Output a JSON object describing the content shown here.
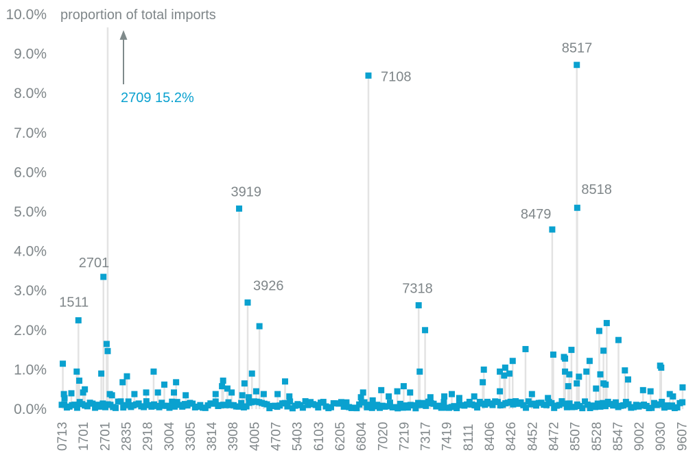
{
  "chart_data": {
    "type": "scatter",
    "style": "lollipop",
    "title": "proportion of total imports",
    "xlabel": "",
    "ylabel": "proportion of total imports",
    "ylim": [
      0,
      10
    ],
    "y_unit": "%",
    "y_ticks": [
      "0.0%",
      "1.0%",
      "2.0%",
      "3.0%",
      "4.0%",
      "5.0%",
      "6.0%",
      "7.0%",
      "8.0%",
      "9.0%",
      "10.0%"
    ],
    "x_tick_labels": [
      "0713",
      "1701",
      "2701",
      "2835",
      "2918",
      "3004",
      "3305",
      "3814",
      "3908",
      "4005",
      "4707",
      "5403",
      "6103",
      "6205",
      "6804",
      "7020",
      "7219",
      "7317",
      "7419",
      "8111",
      "8406",
      "8426",
      "8452",
      "8472",
      "8507",
      "8528",
      "8547",
      "9002",
      "9030",
      "9607"
    ],
    "grid": false,
    "legend": "none",
    "marker_color": "#0aa1cf",
    "stem_color": "#e3e3e3",
    "callout": {
      "text": "2709 15.2%",
      "code": "2709",
      "value": 15.2,
      "position": 2.15,
      "direction": "up-off-scale"
    },
    "labeled_points": [
      {
        "label": "1511",
        "position": 0.78,
        "value": 2.25
      },
      {
        "label": "2701",
        "position": 1.95,
        "value": 3.35
      },
      {
        "label": "3919",
        "position": 8.3,
        "value": 5.08
      },
      {
        "label": "3926",
        "position": 8.7,
        "value": 2.7
      },
      {
        "label": "7108",
        "position": 14.35,
        "value": 8.45
      },
      {
        "label": "7318",
        "position": 16.7,
        "value": 2.63
      },
      {
        "label": "8479",
        "position": 22.95,
        "value": 4.55
      },
      {
        "label": "8517",
        "position": 24.1,
        "value": 8.72
      },
      {
        "label": "8518",
        "position": 24.12,
        "value": 5.1
      }
    ],
    "points": [
      {
        "position": 0.05,
        "value": 1.15
      },
      {
        "position": 0.1,
        "value": 0.38
      },
      {
        "position": 0.13,
        "value": 0.28
      },
      {
        "position": 0.45,
        "value": 0.4
      },
      {
        "position": 0.7,
        "value": 0.95
      },
      {
        "position": 0.82,
        "value": 0.72
      },
      {
        "position": 1.0,
        "value": 0.42
      },
      {
        "position": 1.08,
        "value": 0.5
      },
      {
        "position": 1.85,
        "value": 0.9
      },
      {
        "position": 2.1,
        "value": 1.65
      },
      {
        "position": 2.15,
        "value": 1.47
      },
      {
        "position": 2.25,
        "value": 0.38
      },
      {
        "position": 2.35,
        "value": 0.35
      },
      {
        "position": 2.85,
        "value": 0.68
      },
      {
        "position": 3.05,
        "value": 0.83
      },
      {
        "position": 3.4,
        "value": 0.38
      },
      {
        "position": 3.95,
        "value": 0.42
      },
      {
        "position": 4.3,
        "value": 0.95
      },
      {
        "position": 4.5,
        "value": 0.42
      },
      {
        "position": 4.8,
        "value": 0.62
      },
      {
        "position": 5.25,
        "value": 0.42
      },
      {
        "position": 5.35,
        "value": 0.68
      },
      {
        "position": 5.8,
        "value": 0.35
      },
      {
        "position": 7.2,
        "value": 0.38
      },
      {
        "position": 7.55,
        "value": 0.72
      },
      {
        "position": 7.5,
        "value": 0.58
      },
      {
        "position": 7.75,
        "value": 0.52
      },
      {
        "position": 7.95,
        "value": 0.42
      },
      {
        "position": 8.45,
        "value": 0.35
      },
      {
        "position": 8.55,
        "value": 0.65
      },
      {
        "position": 8.9,
        "value": 0.9
      },
      {
        "position": 8.75,
        "value": 0.3
      },
      {
        "position": 9.25,
        "value": 2.1
      },
      {
        "position": 9.1,
        "value": 0.45
      },
      {
        "position": 9.45,
        "value": 0.38
      },
      {
        "position": 10.1,
        "value": 0.38
      },
      {
        "position": 10.45,
        "value": 0.7
      },
      {
        "position": 10.65,
        "value": 0.32
      },
      {
        "position": 14.0,
        "value": 0.3
      },
      {
        "position": 14.1,
        "value": 0.42
      },
      {
        "position": 14.55,
        "value": 0.22
      },
      {
        "position": 14.95,
        "value": 0.48
      },
      {
        "position": 15.3,
        "value": 0.32
      },
      {
        "position": 15.7,
        "value": 0.45
      },
      {
        "position": 16.0,
        "value": 0.58
      },
      {
        "position": 16.3,
        "value": 0.42
      },
      {
        "position": 16.75,
        "value": 0.95
      },
      {
        "position": 17.0,
        "value": 2.0
      },
      {
        "position": 17.25,
        "value": 0.3
      },
      {
        "position": 17.9,
        "value": 0.32
      },
      {
        "position": 18.25,
        "value": 0.38
      },
      {
        "position": 18.6,
        "value": 0.28
      },
      {
        "position": 19.3,
        "value": 0.32
      },
      {
        "position": 19.7,
        "value": 0.68
      },
      {
        "position": 19.75,
        "value": 1.0
      },
      {
        "position": 20.5,
        "value": 0.95
      },
      {
        "position": 20.7,
        "value": 0.85
      },
      {
        "position": 20.75,
        "value": 1.05
      },
      {
        "position": 20.95,
        "value": 0.9
      },
      {
        "position": 21.1,
        "value": 1.22
      },
      {
        "position": 20.5,
        "value": 0.45
      },
      {
        "position": 21.7,
        "value": 1.52
      },
      {
        "position": 22.0,
        "value": 0.38
      },
      {
        "position": 22.75,
        "value": 0.28
      },
      {
        "position": 23.0,
        "value": 1.38
      },
      {
        "position": 23.5,
        "value": 1.32
      },
      {
        "position": 23.55,
        "value": 1.28
      },
      {
        "position": 23.55,
        "value": 0.95
      },
      {
        "position": 23.75,
        "value": 0.88
      },
      {
        "position": 23.85,
        "value": 1.5
      },
      {
        "position": 23.7,
        "value": 0.58
      },
      {
        "position": 24.2,
        "value": 0.82
      },
      {
        "position": 24.1,
        "value": 0.65
      },
      {
        "position": 24.55,
        "value": 0.95
      },
      {
        "position": 24.7,
        "value": 1.22
      },
      {
        "position": 25.15,
        "value": 1.98
      },
      {
        "position": 25.35,
        "value": 1.48
      },
      {
        "position": 25.5,
        "value": 2.18
      },
      {
        "position": 25.2,
        "value": 0.88
      },
      {
        "position": 25.35,
        "value": 0.65
      },
      {
        "position": 25.45,
        "value": 0.62
      },
      {
        "position": 25.0,
        "value": 0.52
      },
      {
        "position": 26.05,
        "value": 1.75
      },
      {
        "position": 26.35,
        "value": 0.98
      },
      {
        "position": 26.5,
        "value": 0.75
      },
      {
        "position": 27.2,
        "value": 0.48
      },
      {
        "position": 27.55,
        "value": 0.45
      },
      {
        "position": 28.0,
        "value": 1.1
      },
      {
        "position": 28.05,
        "value": 1.05
      },
      {
        "position": 28.45,
        "value": 0.38
      },
      {
        "position": 28.6,
        "value": 0.32
      },
      {
        "position": 29.05,
        "value": 0.55
      }
    ]
  }
}
